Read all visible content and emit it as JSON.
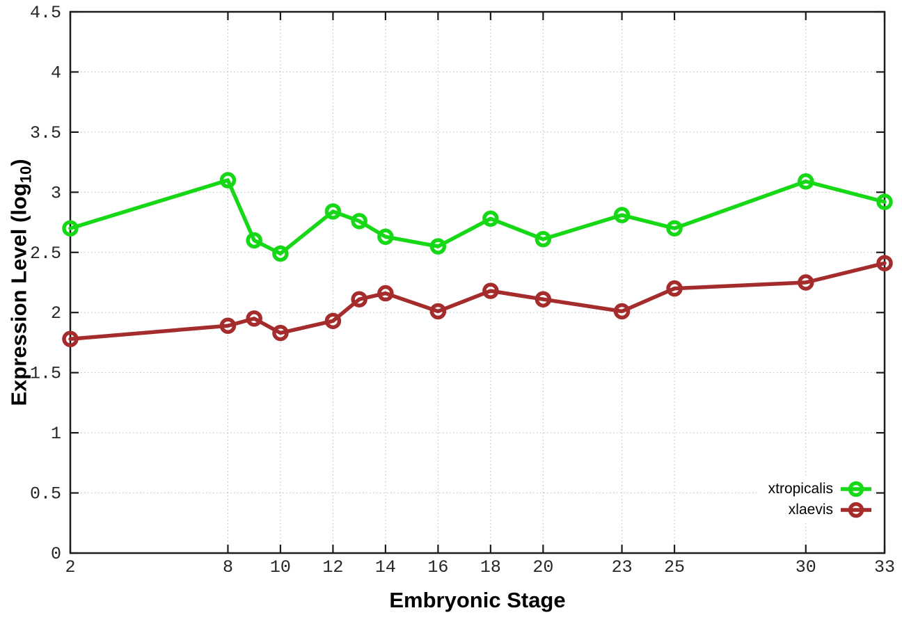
{
  "figure": {
    "background": "#ffffff",
    "border_color": "#1c1c1c",
    "grid_color": "#b8b8b8",
    "tick_color": "#1c1c1c",
    "tick_label_color": "#262626"
  },
  "chart_data": {
    "type": "line",
    "title": "",
    "xlabel": "Embryonic Stage",
    "ylabel": "Expression Level (log10)",
    "ylabel_parts": {
      "prefix": "Expression Level (log",
      "subscript": "10",
      "suffix": ")"
    },
    "x": [
      2,
      8,
      9,
      10,
      12,
      13,
      14,
      16,
      18,
      20,
      23,
      25,
      30,
      33
    ],
    "series": [
      {
        "name": "xtropicalis",
        "color": "#17D817",
        "values": [
          2.7,
          3.1,
          2.6,
          2.49,
          2.84,
          2.76,
          2.63,
          2.55,
          2.78,
          2.61,
          2.81,
          2.7,
          3.09,
          2.92
        ]
      },
      {
        "name": "xlaevis",
        "color": "#A52C2C",
        "values": [
          1.78,
          1.89,
          1.95,
          1.83,
          1.93,
          2.11,
          2.16,
          2.01,
          2.18,
          2.11,
          2.01,
          2.2,
          2.25,
          2.41
        ]
      }
    ],
    "x_ticks": [
      "2",
      "8",
      "10",
      "12",
      "14",
      "16",
      "18",
      "20",
      "23",
      "25",
      "30",
      "33"
    ],
    "y_ticks": [
      "0",
      "0.5",
      "1",
      "1.5",
      "2",
      "2.5",
      "3",
      "3.5",
      "4",
      "4.5"
    ],
    "xlim": [
      2,
      33
    ],
    "ylim": [
      0,
      4.5
    ],
    "grid": true,
    "marker": "open-circle",
    "legend_position": "bottom-right"
  }
}
